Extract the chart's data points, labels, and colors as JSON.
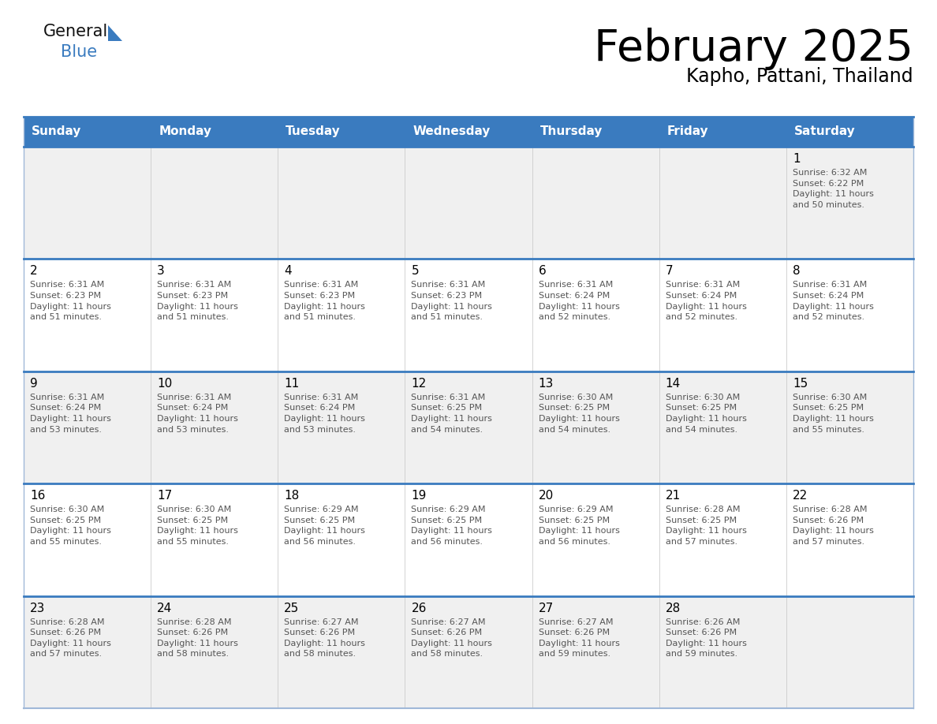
{
  "title": "February 2025",
  "subtitle": "Kapho, Pattani, Thailand",
  "header_bg_color": "#3a7bbf",
  "header_text_color": "#ffffff",
  "row_bg_odd": "#f0f0f0",
  "row_bg_even": "#ffffff",
  "border_color": "#3a7bbf",
  "border_color_light": "#a0b8d8",
  "title_color": "#000000",
  "subtitle_color": "#000000",
  "day_number_color": "#000000",
  "cell_text_color": "#555555",
  "days_of_week": [
    "Sunday",
    "Monday",
    "Tuesday",
    "Wednesday",
    "Thursday",
    "Friday",
    "Saturday"
  ],
  "calendar_data": [
    [
      "",
      "",
      "",
      "",
      "",
      "",
      "1\nSunrise: 6:32 AM\nSunset: 6:22 PM\nDaylight: 11 hours\nand 50 minutes."
    ],
    [
      "2\nSunrise: 6:31 AM\nSunset: 6:23 PM\nDaylight: 11 hours\nand 51 minutes.",
      "3\nSunrise: 6:31 AM\nSunset: 6:23 PM\nDaylight: 11 hours\nand 51 minutes.",
      "4\nSunrise: 6:31 AM\nSunset: 6:23 PM\nDaylight: 11 hours\nand 51 minutes.",
      "5\nSunrise: 6:31 AM\nSunset: 6:23 PM\nDaylight: 11 hours\nand 51 minutes.",
      "6\nSunrise: 6:31 AM\nSunset: 6:24 PM\nDaylight: 11 hours\nand 52 minutes.",
      "7\nSunrise: 6:31 AM\nSunset: 6:24 PM\nDaylight: 11 hours\nand 52 minutes.",
      "8\nSunrise: 6:31 AM\nSunset: 6:24 PM\nDaylight: 11 hours\nand 52 minutes."
    ],
    [
      "9\nSunrise: 6:31 AM\nSunset: 6:24 PM\nDaylight: 11 hours\nand 53 minutes.",
      "10\nSunrise: 6:31 AM\nSunset: 6:24 PM\nDaylight: 11 hours\nand 53 minutes.",
      "11\nSunrise: 6:31 AM\nSunset: 6:24 PM\nDaylight: 11 hours\nand 53 minutes.",
      "12\nSunrise: 6:31 AM\nSunset: 6:25 PM\nDaylight: 11 hours\nand 54 minutes.",
      "13\nSunrise: 6:30 AM\nSunset: 6:25 PM\nDaylight: 11 hours\nand 54 minutes.",
      "14\nSunrise: 6:30 AM\nSunset: 6:25 PM\nDaylight: 11 hours\nand 54 minutes.",
      "15\nSunrise: 6:30 AM\nSunset: 6:25 PM\nDaylight: 11 hours\nand 55 minutes."
    ],
    [
      "16\nSunrise: 6:30 AM\nSunset: 6:25 PM\nDaylight: 11 hours\nand 55 minutes.",
      "17\nSunrise: 6:30 AM\nSunset: 6:25 PM\nDaylight: 11 hours\nand 55 minutes.",
      "18\nSunrise: 6:29 AM\nSunset: 6:25 PM\nDaylight: 11 hours\nand 56 minutes.",
      "19\nSunrise: 6:29 AM\nSunset: 6:25 PM\nDaylight: 11 hours\nand 56 minutes.",
      "20\nSunrise: 6:29 AM\nSunset: 6:25 PM\nDaylight: 11 hours\nand 56 minutes.",
      "21\nSunrise: 6:28 AM\nSunset: 6:25 PM\nDaylight: 11 hours\nand 57 minutes.",
      "22\nSunrise: 6:28 AM\nSunset: 6:26 PM\nDaylight: 11 hours\nand 57 minutes."
    ],
    [
      "23\nSunrise: 6:28 AM\nSunset: 6:26 PM\nDaylight: 11 hours\nand 57 minutes.",
      "24\nSunrise: 6:28 AM\nSunset: 6:26 PM\nDaylight: 11 hours\nand 58 minutes.",
      "25\nSunrise: 6:27 AM\nSunset: 6:26 PM\nDaylight: 11 hours\nand 58 minutes.",
      "26\nSunrise: 6:27 AM\nSunset: 6:26 PM\nDaylight: 11 hours\nand 58 minutes.",
      "27\nSunrise: 6:27 AM\nSunset: 6:26 PM\nDaylight: 11 hours\nand 59 minutes.",
      "28\nSunrise: 6:26 AM\nSunset: 6:26 PM\nDaylight: 11 hours\nand 59 minutes.",
      ""
    ]
  ],
  "logo_text_general": "General",
  "logo_text_blue": "Blue",
  "logo_color_general": "#111111",
  "logo_color_blue": "#3a7bbf",
  "logo_triangle_color": "#3a7bbf"
}
